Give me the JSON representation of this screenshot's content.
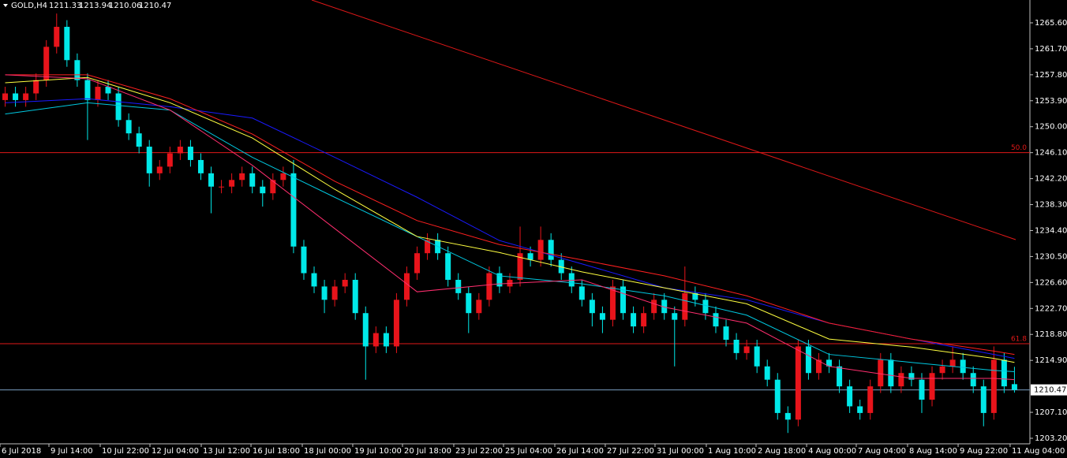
{
  "chart_data": {
    "type": "candlestick",
    "title": "GOLD,H4",
    "background": "#000000",
    "up_color": "#e8141b",
    "down_color": "#00e8e8",
    "xlim": [
      -0.5,
      99.5
    ],
    "ylim": [
      1202.37,
      1269.03
    ],
    "xticks": [
      {
        "value": -0.5,
        "label": "6 Jul 2018"
      },
      {
        "value": 4.25,
        "label": "9 Jul 14:00"
      },
      {
        "value": 9.23,
        "label": "10 Jul 22:00"
      },
      {
        "value": 14.06,
        "label": "12 Jul 04:00"
      },
      {
        "value": 19.04,
        "label": "13 Jul 12:00"
      },
      {
        "value": 23.87,
        "label": "16 Jul 18:00"
      },
      {
        "value": 28.85,
        "label": "18 Jul 00:00"
      },
      {
        "value": 33.75,
        "label": "19 Jul 10:00"
      },
      {
        "value": 38.58,
        "label": "20 Jul 18:00"
      },
      {
        "value": 43.56,
        "label": "23 Jul 22:00"
      },
      {
        "value": 48.39,
        "label": "25 Jul 04:00"
      },
      {
        "value": 53.37,
        "label": "26 Jul 14:00"
      },
      {
        "value": 58.27,
        "label": "27 Jul 22:00"
      },
      {
        "value": 63.1,
        "label": "31 Jul 00:00"
      },
      {
        "value": 68.08,
        "label": "1 Aug 10:00"
      },
      {
        "value": 72.91,
        "label": "2 Aug 18:00"
      },
      {
        "value": 77.82,
        "label": "4 Aug 00:00"
      },
      {
        "value": 82.64,
        "label": "7 Aug 04:00"
      },
      {
        "value": 87.62,
        "label": "8 Aug 14:00"
      },
      {
        "value": 92.53,
        "label": "9 Aug 22:00"
      },
      {
        "value": 97.58,
        "label": "11 Aug 04:00"
      }
    ],
    "yticks": [
      {
        "value": 1203.2,
        "label": "1203.20"
      },
      {
        "value": 1207.1,
        "label": "1207.10"
      },
      {
        "value": 1214.9,
        "label": "1214.90"
      },
      {
        "value": 1218.8,
        "label": "1218.80"
      },
      {
        "value": 1222.7,
        "label": "1222.70"
      },
      {
        "value": 1226.6,
        "label": "1226.60"
      },
      {
        "value": 1230.5,
        "label": "1230.50"
      },
      {
        "value": 1234.4,
        "label": "1234.40"
      },
      {
        "value": 1238.3,
        "label": "1238.30"
      },
      {
        "value": 1242.2,
        "label": "1242.20"
      },
      {
        "value": 1246.1,
        "label": "1246.10"
      },
      {
        "value": 1250,
        "label": "1250.00"
      },
      {
        "value": 1253.9,
        "label": "1253.90"
      },
      {
        "value": 1257.8,
        "label": "1257.80"
      },
      {
        "value": 1261.7,
        "label": "1261.70"
      },
      {
        "value": 1265.6,
        "label": "1265.60"
      }
    ],
    "open": [
      1254,
      1255,
      1254,
      1255,
      1257,
      1262,
      1265,
      1260,
      1257,
      1254,
      1256,
      1255,
      1251,
      1249,
      1247,
      1243,
      1244,
      1246,
      1247,
      1245,
      1243,
      1241,
      1241,
      1242,
      1243,
      1241,
      1240,
      1242,
      1243,
      1232,
      1228,
      1226,
      1224,
      1226,
      1227,
      1222,
      1217,
      1219,
      1217,
      1224,
      1228,
      1231,
      1233,
      1231,
      1227,
      1225,
      1222,
      1224,
      1228,
      1226,
      1227,
      1231,
      1230,
      1233,
      1230,
      1228,
      1226,
      1224,
      1222,
      1221,
      1226,
      1222,
      1220,
      1222,
      1224,
      1222,
      1221,
      1225,
      1224,
      1222,
      1220,
      1218,
      1216,
      1217,
      1214,
      1212,
      1207,
      1206,
      1217,
      1213,
      1215,
      1214,
      1211,
      1208,
      1207,
      1211,
      1215,
      1211,
      1213,
      1212,
      1209,
      1213,
      1214,
      1215,
      1213,
      1211,
      1207,
      1215,
      1211.33
    ],
    "high": [
      1256,
      1256,
      1256,
      1258,
      1263,
      1267,
      1266,
      1261,
      1258,
      1257,
      1257,
      1256,
      1252,
      1250,
      1248,
      1245,
      1247,
      1248,
      1248,
      1246,
      1244,
      1242,
      1243,
      1244,
      1244,
      1242,
      1243,
      1244,
      1245,
      1233,
      1229,
      1227,
      1227,
      1228,
      1228,
      1223,
      1220,
      1220,
      1225,
      1229,
      1232,
      1234,
      1234,
      1232,
      1228,
      1226,
      1225,
      1229,
      1229,
      1228,
      1235,
      1232,
      1235,
      1234,
      1231,
      1229,
      1227,
      1225,
      1223,
      1227,
      1227,
      1223,
      1223,
      1225,
      1225,
      1223,
      1229,
      1226,
      1225,
      1223,
      1221,
      1219,
      1218,
      1218,
      1215,
      1213,
      1208,
      1218,
      1218,
      1216,
      1216,
      1215,
      1212,
      1209,
      1212,
      1216,
      1216,
      1214,
      1214,
      1213,
      1214,
      1215,
      1217,
      1216,
      1214,
      1212,
      1217,
      1216,
      1213.94
    ],
    "low": [
      1253,
      1253,
      1253,
      1254,
      1256,
      1261,
      1259,
      1256,
      1248,
      1253,
      1254,
      1250,
      1248,
      1246,
      1241,
      1242,
      1243,
      1245,
      1244,
      1242,
      1237,
      1240,
      1240,
      1241,
      1240,
      1238,
      1239,
      1241,
      1231,
      1227,
      1225,
      1222,
      1223,
      1225,
      1221,
      1212,
      1216,
      1216,
      1216,
      1223,
      1227,
      1230,
      1230,
      1226,
      1224,
      1219,
      1221,
      1223,
      1225,
      1225,
      1226,
      1229,
      1229,
      1229,
      1227,
      1225,
      1223,
      1220,
      1219,
      1220,
      1221,
      1219,
      1219,
      1221,
      1221,
      1214,
      1220,
      1223,
      1221,
      1219,
      1217,
      1215,
      1215,
      1213,
      1211,
      1206,
      1204,
      1205,
      1212,
      1212,
      1213,
      1210,
      1207,
      1206,
      1206,
      1210,
      1210,
      1210,
      1211,
      1207,
      1208,
      1212,
      1213,
      1212,
      1210,
      1205,
      1206,
      1210,
      1210.06
    ],
    "close": [
      1255,
      1254,
      1255,
      1257,
      1262,
      1265,
      1260,
      1257,
      1254,
      1256,
      1255,
      1251,
      1249,
      1247,
      1243,
      1244,
      1246,
      1247,
      1245,
      1243,
      1241,
      1241,
      1242,
      1243,
      1241,
      1240,
      1242,
      1243,
      1232,
      1228,
      1226,
      1224,
      1226,
      1227,
      1222,
      1217,
      1219,
      1217,
      1224,
      1228,
      1231,
      1233,
      1231,
      1227,
      1225,
      1222,
      1224,
      1228,
      1226,
      1227,
      1231,
      1230,
      1233,
      1230,
      1228,
      1226,
      1224,
      1222,
      1221,
      1226,
      1222,
      1220,
      1222,
      1224,
      1222,
      1221,
      1225,
      1224,
      1222,
      1220,
      1218,
      1216,
      1217,
      1214,
      1212,
      1207,
      1206,
      1217,
      1213,
      1215,
      1214,
      1211,
      1208,
      1207,
      1211,
      1215,
      1211,
      1213,
      1212,
      1209,
      1213,
      1214,
      1215,
      1213,
      1211,
      1207,
      1215,
      1211,
      1210.47
    ],
    "ma_x": [
      0,
      8,
      16,
      24,
      32,
      40,
      48,
      56,
      64,
      72,
      80,
      88,
      96,
      98
    ],
    "moving_averages": [
      {
        "color": "#00c8e0",
        "values": [
          1251.9,
          1253.6,
          1252.5,
          1245.4,
          1239.4,
          1233.5,
          1227.6,
          1226.4,
          1224.6,
          1221.7,
          1215.8,
          1214.6,
          1213.4,
          1213.2
        ]
      },
      {
        "color": "#1a1aff",
        "values": [
          1253.6,
          1254.2,
          1253,
          1251.3,
          1245.4,
          1239.4,
          1232.9,
          1229.4,
          1225.8,
          1224,
          1220.5,
          1218.1,
          1215.8,
          1215.2
        ]
      },
      {
        "color": "#ffff40",
        "values": [
          1256.6,
          1257.4,
          1253.6,
          1248.3,
          1240.6,
          1233.5,
          1231.1,
          1228.2,
          1225.8,
          1223.4,
          1218.1,
          1216.9,
          1215.2,
          1214.6
        ]
      },
      {
        "color": "#ff2020",
        "values": [
          1257.8,
          1257.8,
          1254.2,
          1248.9,
          1241.8,
          1235.9,
          1232.3,
          1230,
          1227.6,
          1224.6,
          1220.5,
          1218.1,
          1216.3,
          1215.8
        ]
      },
      {
        "color": "#ff2e6e",
        "values": [
          1257.8,
          1257.2,
          1252.5,
          1244.2,
          1234.7,
          1225.2,
          1226.4,
          1227,
          1222.9,
          1220.5,
          1214,
          1212.2,
          1212.2,
          1212
        ]
      }
    ],
    "trendline": {
      "color": "#e01818",
      "x": [
        29.77,
        98.12
      ],
      "y": [
        1269.03,
        1233.04
      ]
    },
    "fib_color": "#e01818",
    "fib_levels": [
      {
        "label": "50.0",
        "value": 1246.1
      },
      {
        "label": "61.8",
        "value": 1217.4
      }
    ],
    "price_line_color": "#7a9cc0"
  }
}
